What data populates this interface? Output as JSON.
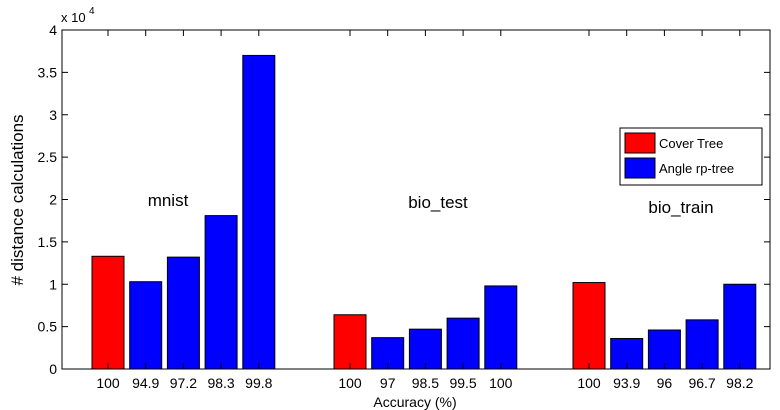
{
  "chart_data": {
    "type": "bar",
    "xlabel": "Accuracy (%)",
    "ylabel": "# distance calculations",
    "ylim": [
      0,
      4
    ],
    "y_multiplier_label": "x 10",
    "y_multiplier_exponent": "4",
    "yticks": [
      "0",
      "0.5",
      "1",
      "1.5",
      "2",
      "2.5",
      "3",
      "3.5",
      "4"
    ],
    "grid": false,
    "legend_position": "right",
    "legend": [
      {
        "name": "Cover Tree",
        "color": "#ff0000"
      },
      {
        "name": "Angle rp-tree",
        "color": "#0000ff"
      }
    ],
    "groups": [
      {
        "name": "mnist",
        "bars": [
          {
            "label": "100",
            "value": 1.33,
            "series": "Cover Tree"
          },
          {
            "label": "94.9",
            "value": 1.03,
            "series": "Angle rp-tree"
          },
          {
            "label": "97.2",
            "value": 1.32,
            "series": "Angle rp-tree"
          },
          {
            "label": "98.3",
            "value": 1.81,
            "series": "Angle rp-tree"
          },
          {
            "label": "99.8",
            "value": 3.7,
            "series": "Angle rp-tree"
          }
        ]
      },
      {
        "name": "bio_test",
        "bars": [
          {
            "label": "100",
            "value": 0.64,
            "series": "Cover Tree"
          },
          {
            "label": "97",
            "value": 0.37,
            "series": "Angle rp-tree"
          },
          {
            "label": "98.5",
            "value": 0.47,
            "series": "Angle rp-tree"
          },
          {
            "label": "99.5",
            "value": 0.6,
            "series": "Angle rp-tree"
          },
          {
            "label": "100",
            "value": 0.98,
            "series": "Angle rp-tree"
          }
        ]
      },
      {
        "name": "bio_train",
        "bars": [
          {
            "label": "100",
            "value": 1.02,
            "series": "Cover Tree"
          },
          {
            "label": "93.9",
            "value": 0.36,
            "series": "Angle rp-tree"
          },
          {
            "label": "96",
            "value": 0.46,
            "series": "Angle rp-tree"
          },
          {
            "label": "96.7",
            "value": 0.58,
            "series": "Angle rp-tree"
          },
          {
            "label": "98.2",
            "value": 1.0,
            "series": "Angle rp-tree"
          }
        ]
      }
    ]
  }
}
